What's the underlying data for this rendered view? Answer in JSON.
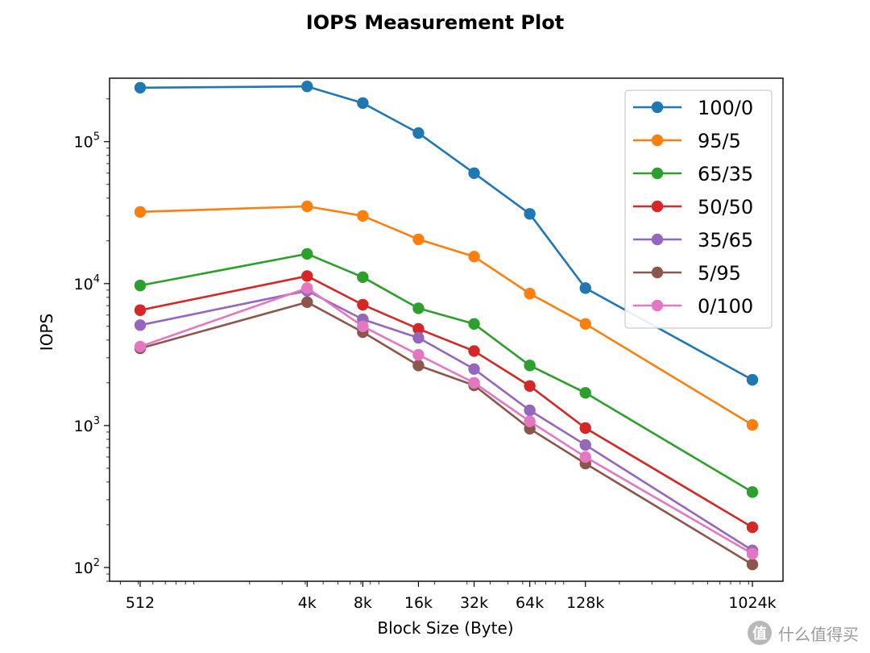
{
  "chart_data": {
    "type": "line",
    "title": "IOPS Measurement Plot",
    "xlabel": "Block Size (Byte)",
    "ylabel": "IOPS",
    "x_scale": "log2",
    "y_scale": "log10",
    "x": [
      512,
      4096,
      8192,
      16384,
      32768,
      65536,
      131072,
      1048576
    ],
    "x_tick_labels": [
      "512",
      "4k",
      "8k",
      "16k",
      "32k",
      "64k",
      "128k",
      "1024k"
    ],
    "y_ticks": [
      {
        "base": "10",
        "exp": "2"
      },
      {
        "base": "10",
        "exp": "3"
      },
      {
        "base": "10",
        "exp": "4"
      },
      {
        "base": "10",
        "exp": "5"
      }
    ],
    "ylim": [
      80,
      280000
    ],
    "legend_position": "upper right",
    "grid": false,
    "series": [
      {
        "name": "100/0",
        "color": "#1f77b4",
        "values": [
          240000,
          245000,
          187000,
          115000,
          60000,
          31000,
          9300,
          2100
        ]
      },
      {
        "name": "95/5",
        "color": "#ff7f0e",
        "values": [
          32000,
          35000,
          30000,
          20500,
          15500,
          8500,
          5200,
          1010
        ]
      },
      {
        "name": "65/35",
        "color": "#2ca02c",
        "values": [
          9700,
          16200,
          11100,
          6700,
          5200,
          2650,
          1700,
          340
        ]
      },
      {
        "name": "50/50",
        "color": "#d62728",
        "values": [
          6500,
          11300,
          7100,
          4800,
          3350,
          1900,
          960,
          192
        ]
      },
      {
        "name": "35/65",
        "color": "#9467bd",
        "values": [
          5100,
          8900,
          5600,
          4150,
          2500,
          1280,
          730,
          132
        ]
      },
      {
        "name": "5/95",
        "color": "#8c564b",
        "values": [
          3500,
          7400,
          4550,
          2650,
          1920,
          950,
          540,
          105
        ]
      },
      {
        "name": "0/100",
        "color": "#e377c2",
        "values": [
          3600,
          9300,
          5000,
          3150,
          2000,
          1070,
          600,
          125
        ]
      }
    ]
  },
  "watermark": {
    "icon_text": "值",
    "text": "什么值得买"
  }
}
